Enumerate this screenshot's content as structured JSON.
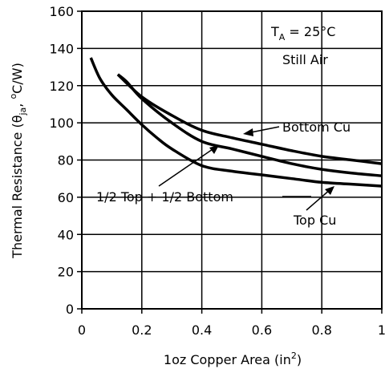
{
  "chart_data": {
    "type": "line",
    "title": "",
    "xlabel": {
      "base": "1oz Copper Area (in",
      "sup": "2",
      "tail": ")"
    },
    "ylabel": {
      "base": "Thermal Resistance (θ",
      "sub": "ja",
      "mid": ", ",
      "sup": "o",
      "tail": "C/W)"
    },
    "xlim": [
      0,
      1
    ],
    "ylim": [
      0,
      160
    ],
    "xticks": [
      0,
      0.2,
      0.4,
      0.6,
      0.8,
      1
    ],
    "xtick_labels": [
      "0",
      "0.2",
      "0.4",
      "0.6",
      "0.8",
      "1"
    ],
    "yticks": [
      0,
      20,
      40,
      60,
      80,
      100,
      120,
      140,
      160
    ],
    "ytick_labels": [
      "0",
      "20",
      "40",
      "60",
      "80",
      "100",
      "120",
      "140",
      "160"
    ],
    "grid": true,
    "conditions": {
      "ta_prefix": "T",
      "ta_sub": "A",
      "ta_value": " = 25°C",
      "air": "Still Air"
    },
    "series": [
      {
        "name": "Bottom Cu",
        "x": [
          0.12,
          0.2,
          0.3,
          0.4,
          0.5,
          0.6,
          0.7,
          0.8,
          0.9,
          1.0
        ],
        "y": [
          126,
          114,
          104,
          96,
          92,
          88.5,
          85,
          82,
          80,
          78
        ]
      },
      {
        "name": "1/2 Top + 1/2 Bottom",
        "x": [
          0.12,
          0.15,
          0.2,
          0.3,
          0.4,
          0.5,
          0.6,
          0.7,
          0.8,
          0.9,
          1.0
        ],
        "y": [
          126,
          122,
          113,
          100,
          90,
          86,
          82,
          78,
          75,
          73,
          71.5
        ]
      },
      {
        "name": "Top Cu",
        "x": [
          0.03,
          0.06,
          0.1,
          0.15,
          0.2,
          0.25,
          0.3,
          0.4,
          0.5,
          0.6,
          0.7,
          0.8,
          0.9,
          1.0
        ],
        "y": [
          135,
          124,
          115,
          107,
          99,
          92,
          86,
          77,
          74,
          72,
          70,
          68,
          67,
          66
        ]
      }
    ]
  }
}
